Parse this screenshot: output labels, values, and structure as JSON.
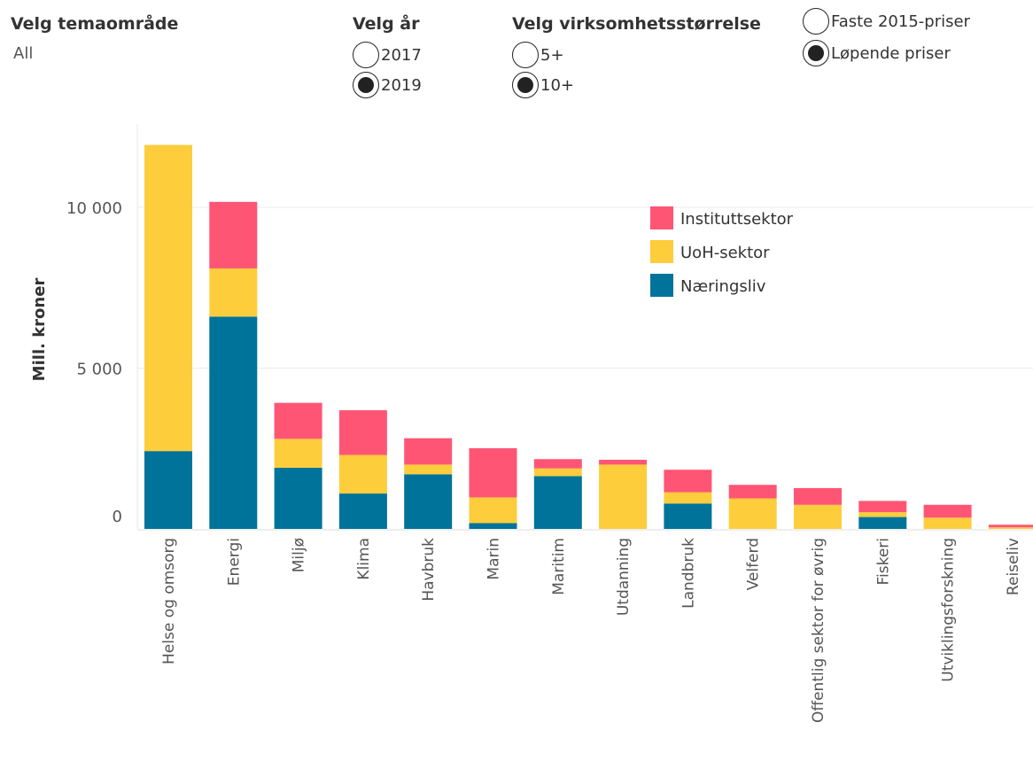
{
  "filters": {
    "tema": {
      "title": "Velg temaområde",
      "value": "All"
    },
    "year": {
      "title": "Velg år",
      "options": [
        "2017",
        "2019"
      ],
      "selected": "2019"
    },
    "size": {
      "title": "Velg virksomhetsstørrelse",
      "options": [
        "5+",
        "10+"
      ],
      "selected": "10+"
    },
    "price": {
      "options": [
        "Faste 2015-priser",
        "Løpende priser"
      ],
      "selected": "Løpende priser"
    }
  },
  "chart_data": {
    "type": "bar",
    "stacked": true,
    "ylabel": "Mill. kroner",
    "ylim": [
      0,
      12300
    ],
    "yticks": [
      0,
      5000,
      10000
    ],
    "ytick_labels": [
      "0",
      "5 000",
      "10 000"
    ],
    "grid": true,
    "legend_position": "top-right",
    "categories": [
      "Helse og omsorg",
      "Energi",
      "Miljø",
      "Klima",
      "Havbruk",
      "Marin",
      "Maritim",
      "Utdanning",
      "Landbruk",
      "Velferd",
      "Offentlig sektor for øvrig",
      "Fiskeri",
      "Utviklingsforskning",
      "Reiseliv"
    ],
    "series": [
      {
        "name": "Næringsliv",
        "color": "#00739a",
        "values": [
          2420,
          6600,
          1900,
          1100,
          1700,
          180,
          1640,
          0,
          790,
          0,
          0,
          370,
          0,
          0
        ]
      },
      {
        "name": "UoH-sektor",
        "color": "#fdcd3c",
        "values": [
          9520,
          1500,
          900,
          1200,
          300,
          800,
          240,
          2000,
          350,
          950,
          750,
          150,
          350,
          50
        ]
      },
      {
        "name": "Instituttsektor",
        "color": "#ff5575",
        "values": [
          0,
          2070,
          1120,
          1390,
          820,
          1530,
          290,
          150,
          700,
          420,
          520,
          350,
          400,
          80
        ]
      }
    ],
    "legend_order": [
      "Instituttsektor",
      "UoH-sektor",
      "Næringsliv"
    ]
  }
}
